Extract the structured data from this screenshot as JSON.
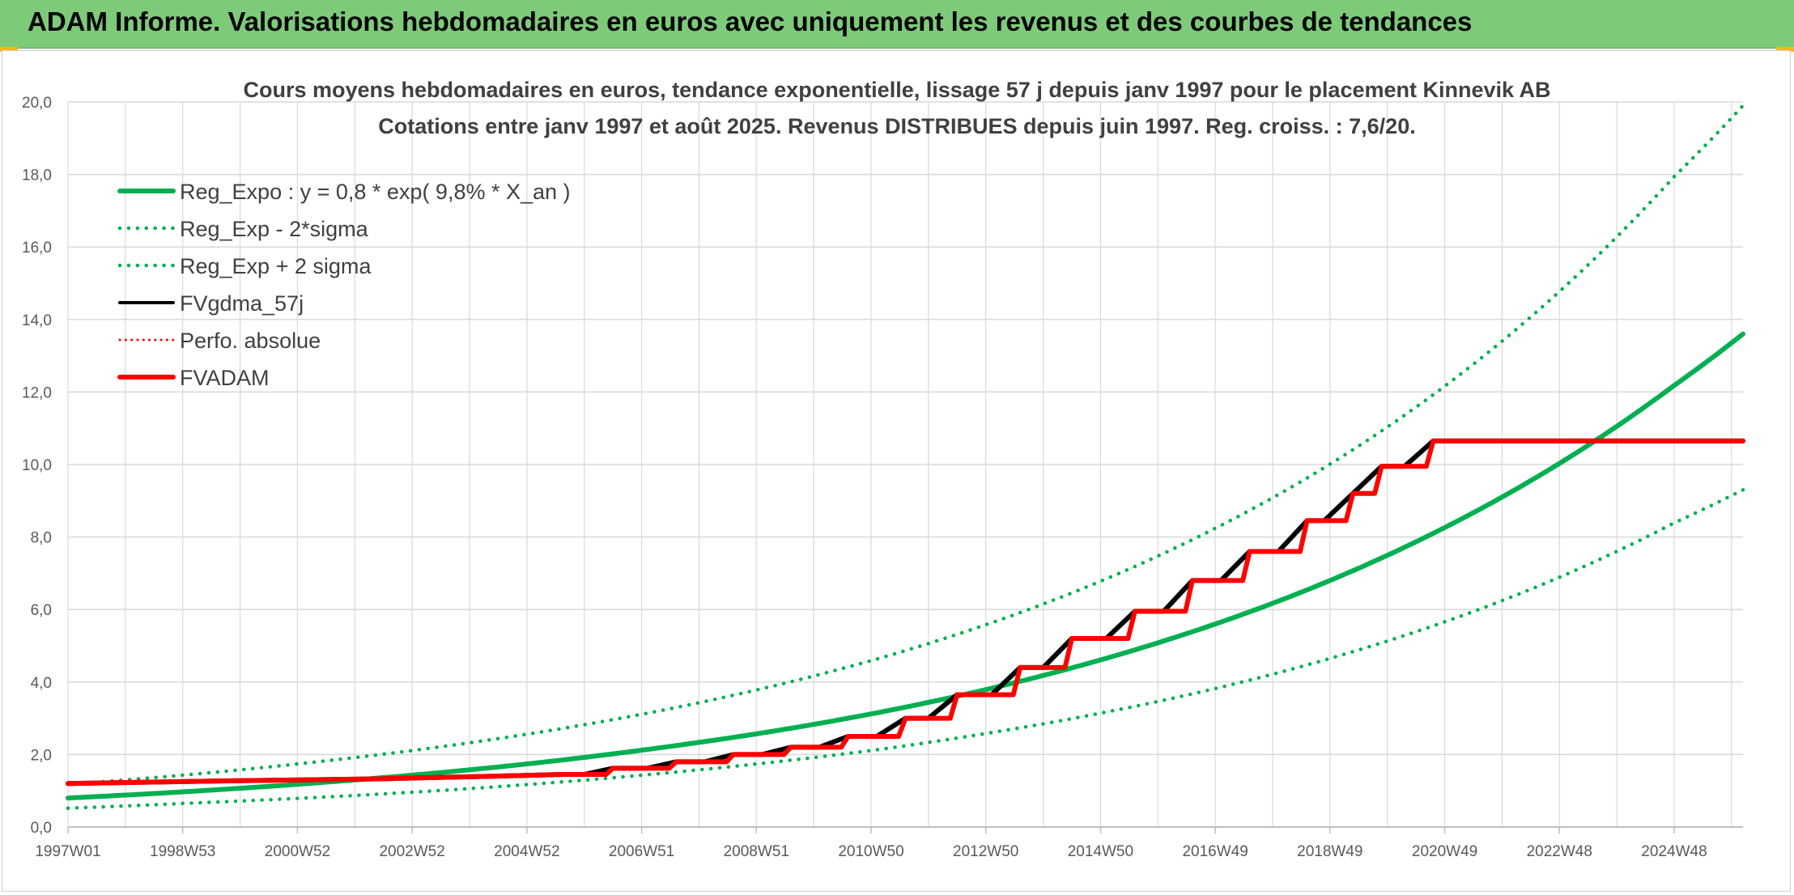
{
  "banner": {
    "title": "ADAM Informe. Valorisations hebdomadaires en euros avec uniquement les revenus et des courbes de tendances"
  },
  "colors": {
    "banner_bg": "#7dcb79",
    "green": "#00b050",
    "red": "#ff0000",
    "black": "#000000",
    "grid": "#d9d9d9"
  },
  "chart_data": {
    "type": "line",
    "title_lines": [
      "Cours moyens hebdomadaires en euros, tendance exponentielle, lissage 57 j depuis janv 1997 pour le placement Kinnevik AB",
      "Cotations entre janv 1997 et août 2025. Revenus DISTRIBUES depuis juin 1997. Reg. croiss. : 7,6/20."
    ],
    "ylim": [
      0,
      20
    ],
    "y_ticks": [
      "0,0",
      "2,0",
      "4,0",
      "6,0",
      "8,0",
      "10,0",
      "12,0",
      "14,0",
      "16,0",
      "18,0",
      "20,0"
    ],
    "x_range_years": [
      1997.0,
      2026.2
    ],
    "x_ticks": [
      {
        "label": "1997W01",
        "year": 1997.0
      },
      {
        "label": "1998W53",
        "year": 1999.0
      },
      {
        "label": "2000W52",
        "year": 2001.0
      },
      {
        "label": "2002W52",
        "year": 2003.0
      },
      {
        "label": "2004W52",
        "year": 2005.0
      },
      {
        "label": "2006W51",
        "year": 2007.0
      },
      {
        "label": "2008W51",
        "year": 2009.0
      },
      {
        "label": "2010W50",
        "year": 2011.0
      },
      {
        "label": "2012W50",
        "year": 2013.0
      },
      {
        "label": "2014W50",
        "year": 2015.0
      },
      {
        "label": "2016W49",
        "year": 2017.0
      },
      {
        "label": "2018W49",
        "year": 2019.0
      },
      {
        "label": "2020W49",
        "year": 2021.0
      },
      {
        "label": "2022W48",
        "year": 2023.0
      },
      {
        "label": "2024W48",
        "year": 2025.0
      }
    ],
    "legend": [
      {
        "key": "reg",
        "label": "Reg_Expo : y = 0,8 * exp( 9,8% *  X_an )",
        "color": "#00b050",
        "style": "solid",
        "width": 6
      },
      {
        "key": "lower",
        "label": "Reg_Exp - 2*sigma",
        "color": "#00b050",
        "style": "dotted",
        "width": 4.5
      },
      {
        "key": "upper",
        "label": "Reg_Exp + 2 sigma",
        "color": "#00b050",
        "style": "dotted",
        "width": 4.5
      },
      {
        "key": "gdma",
        "label": "FVgdma_57j",
        "color": "#000000",
        "style": "solid",
        "width": 4
      },
      {
        "key": "perfo",
        "label": "Perfo. absolue",
        "color": "#ff0000",
        "style": "dotted",
        "width": 3
      },
      {
        "key": "adam",
        "label": "FVADAM",
        "color": "#ff0000",
        "style": "solid",
        "width": 6
      }
    ],
    "series": [
      {
        "name": "Reg_Expo : y = 0,8 * exp( 9,8% *  X_an )",
        "x": [
          1997,
          1999,
          2001,
          2003,
          2005,
          2007,
          2009,
          2011,
          2013,
          2015,
          2017,
          2019,
          2021,
          2023,
          2025,
          2026.2
        ],
        "y": [
          0.8,
          0.97,
          1.18,
          1.43,
          1.74,
          2.12,
          2.57,
          3.12,
          3.79,
          4.61,
          5.6,
          6.8,
          8.26,
          10.03,
          12.18,
          13.6
        ]
      },
      {
        "name": "Reg_Exp - 2*sigma",
        "x": [
          1997,
          1999,
          2001,
          2003,
          2005,
          2007,
          2009,
          2011,
          2013,
          2015,
          2017,
          2019,
          2021,
          2023,
          2025,
          2026.2
        ],
        "y": [
          0.52,
          0.65,
          0.79,
          0.96,
          1.17,
          1.43,
          1.74,
          2.11,
          2.58,
          3.14,
          3.82,
          4.65,
          5.66,
          6.89,
          8.39,
          9.3
        ]
      },
      {
        "name": "Reg_Exp + 2 sigma",
        "x": [
          1997,
          1999,
          2001,
          2003,
          2005,
          2007,
          2009,
          2011,
          2013,
          2015,
          2017,
          2019,
          2021,
          2023,
          2025,
          2026.2
        ],
        "y": [
          1.18,
          1.43,
          1.74,
          2.11,
          2.56,
          3.11,
          3.78,
          4.59,
          5.58,
          6.78,
          8.24,
          10.01,
          12.16,
          14.77,
          17.94,
          19.9
        ]
      },
      {
        "name": "FVADAM",
        "x": [
          1997.0,
          2000.0,
          2002.5,
          2003.2,
          2004.4,
          2005.6,
          2006.5,
          2007.6,
          2008.6,
          2009.6,
          2010.6,
          2011.6,
          2012.5,
          2013.6,
          2014.5,
          2015.6,
          2016.6,
          2017.6,
          2018.6,
          2019.4,
          2019.9,
          2020.8,
          2026.2
        ],
        "y": [
          1.2,
          1.28,
          1.33,
          1.36,
          1.4,
          1.45,
          1.62,
          1.8,
          2.0,
          2.2,
          2.5,
          3.0,
          3.65,
          4.4,
          5.2,
          5.95,
          6.8,
          7.6,
          8.45,
          9.2,
          9.95,
          10.65,
          10.65
        ]
      }
    ]
  }
}
